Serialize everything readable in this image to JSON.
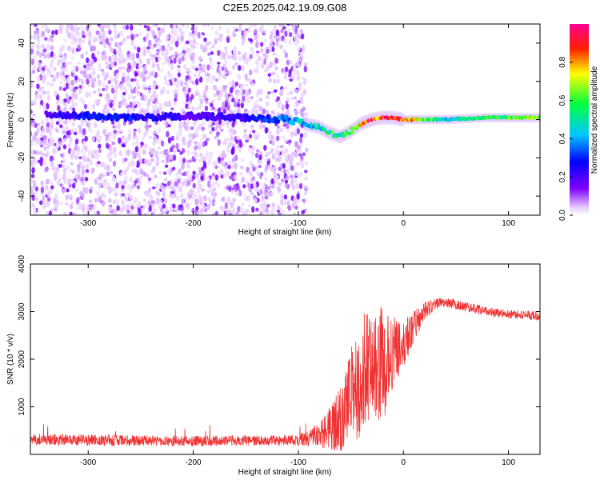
{
  "title": "C2E5.2025.042.19.09.G08",
  "chart_data": [
    {
      "type": "heatmap",
      "xlabel": "Height of straight line (km)",
      "ylabel": "Frequency (Hz)",
      "xlim": [
        -355,
        130
      ],
      "ylim": [
        -50,
        50
      ],
      "xticks": [
        -300,
        -200,
        -100,
        0,
        100
      ],
      "yticks": [
        -40,
        -20,
        0,
        20,
        40
      ],
      "colorbar": {
        "label": "Normalized spectral amplitude",
        "range": [
          0,
          1
        ],
        "ticks": [
          "0.0",
          "0.2",
          "0.4",
          "0.6",
          "0.8"
        ],
        "tick_values": [
          0.0,
          0.2,
          0.4,
          0.6,
          0.8
        ]
      },
      "ridge": {
        "x": [
          -340,
          -300,
          -260,
          -200,
          -150,
          -110,
          -95,
          -80,
          -70,
          -60,
          -50,
          -40,
          -30,
          -20,
          -10,
          0,
          40,
          80,
          130
        ],
        "freq": [
          3,
          2,
          1,
          2,
          1,
          0,
          -2,
          -4,
          -7,
          -9,
          -6,
          -2,
          0,
          1,
          1,
          0,
          0,
          1,
          1
        ],
        "amplitude": [
          0.2,
          0.3,
          0.3,
          0.2,
          0.25,
          0.4,
          0.45,
          0.5,
          0.6,
          0.55,
          0.7,
          0.9,
          0.95,
          0.95,
          1.0,
          0.95,
          0.5,
          0.6,
          0.7
        ]
      },
      "noise_region_x": [
        -355,
        -92
      ]
    },
    {
      "type": "line",
      "xlabel": "Height of straight line (km)",
      "ylabel": "SNR (10 * v/v)",
      "xlim": [
        -355,
        130
      ],
      "ylim": [
        0,
        4000
      ],
      "xticks": [
        -300,
        -200,
        -100,
        0,
        100
      ],
      "yticks": [
        1000,
        2000,
        3000,
        4000
      ],
      "series_color": "#ee3333",
      "envelope": {
        "x": [
          -355,
          -300,
          -200,
          -100,
          -80,
          -60,
          -50,
          -40,
          -30,
          -20,
          -10,
          0,
          10,
          20,
          30,
          40,
          60,
          80,
          100,
          130
        ],
        "mean": [
          320,
          300,
          280,
          300,
          400,
          700,
          1200,
          1700,
          1900,
          1900,
          2000,
          2300,
          2700,
          3000,
          3150,
          3200,
          3100,
          3000,
          2950,
          2900
        ],
        "spread": [
          120,
          120,
          110,
          110,
          250,
          700,
          1100,
          1300,
          1200,
          1200,
          900,
          500,
          350,
          200,
          120,
          100,
          100,
          100,
          100,
          100
        ]
      }
    }
  ]
}
